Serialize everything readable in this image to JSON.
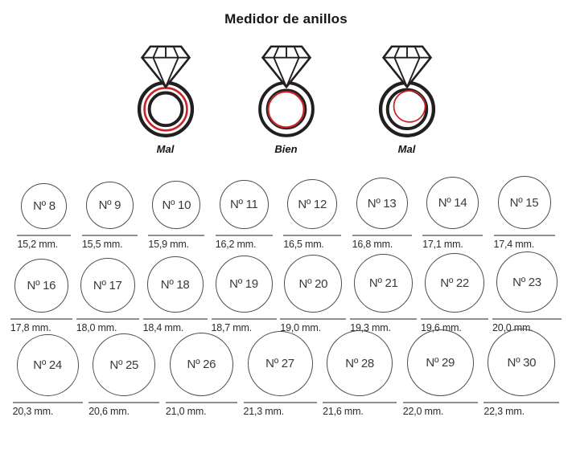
{
  "title": "Medidor de anillos",
  "fit_guide": {
    "items": [
      {
        "label": "Mal",
        "icon": "diamond-ring-finger-inside-band-icon"
      },
      {
        "label": "Bien",
        "icon": "diamond-ring-finger-perfect-fit-icon"
      },
      {
        "label": "Mal",
        "icon": "diamond-ring-finger-too-small-icon"
      }
    ]
  },
  "size_chart": {
    "unit": "mm.",
    "rows": [
      [
        {
          "number": "Nº 8",
          "diameter_mm": 15.2,
          "diameter_label": "15,2 mm."
        },
        {
          "number": "Nº 9",
          "diameter_mm": 15.5,
          "diameter_label": "15,5 mm."
        },
        {
          "number": "Nº 10",
          "diameter_mm": 15.9,
          "diameter_label": "15,9 mm."
        },
        {
          "number": "Nº 11",
          "diameter_mm": 16.2,
          "diameter_label": "16,2 mm."
        },
        {
          "number": "Nº 12",
          "diameter_mm": 16.5,
          "diameter_label": "16,5 mm."
        },
        {
          "number": "Nº 13",
          "diameter_mm": 16.8,
          "diameter_label": "16,8 mm."
        },
        {
          "number": "Nº 14",
          "diameter_mm": 17.1,
          "diameter_label": "17,1 mm."
        },
        {
          "number": "Nº 15",
          "diameter_mm": 17.4,
          "diameter_label": "17,4 mm."
        }
      ],
      [
        {
          "number": "Nº 16",
          "diameter_mm": 17.8,
          "diameter_label": "17,8 mm."
        },
        {
          "number": "Nº 17",
          "diameter_mm": 18.0,
          "diameter_label": "18,0 mm."
        },
        {
          "number": "Nº 18",
          "diameter_mm": 18.4,
          "diameter_label": "18,4 mm."
        },
        {
          "number": "Nº 19",
          "diameter_mm": 18.7,
          "diameter_label": "18,7 mm."
        },
        {
          "number": "Nº 20",
          "diameter_mm": 19.0,
          "diameter_label": "19,0 mm."
        },
        {
          "number": "Nº 21",
          "diameter_mm": 19.3,
          "diameter_label": "19,3 mm."
        },
        {
          "number": "Nº 22",
          "diameter_mm": 19.6,
          "diameter_label": "19,6 mm."
        },
        {
          "number": "Nº 23",
          "diameter_mm": 20.0,
          "diameter_label": "20,0 mm."
        }
      ],
      [
        {
          "number": "Nº 24",
          "diameter_mm": 20.3,
          "diameter_label": "20,3 mm."
        },
        {
          "number": "Nº 25",
          "diameter_mm": 20.6,
          "diameter_label": "20,6 mm."
        },
        {
          "number": "Nº 26",
          "diameter_mm": 21.0,
          "diameter_label": "21,0 mm."
        },
        {
          "number": "Nº 27",
          "diameter_mm": 21.3,
          "diameter_label": "21,3 mm."
        },
        {
          "number": "Nº 28",
          "diameter_mm": 21.6,
          "diameter_label": "21,6 mm."
        },
        {
          "number": "Nº 29",
          "diameter_mm": 22.0,
          "diameter_label": "22,0 mm."
        },
        {
          "number": "Nº 30",
          "diameter_mm": 22.3,
          "diameter_label": "22,3 mm."
        }
      ]
    ]
  },
  "colors": {
    "outline_black": "#231f20",
    "finger_red": "#cb2026",
    "underline_gray": "#8f8f8f"
  }
}
